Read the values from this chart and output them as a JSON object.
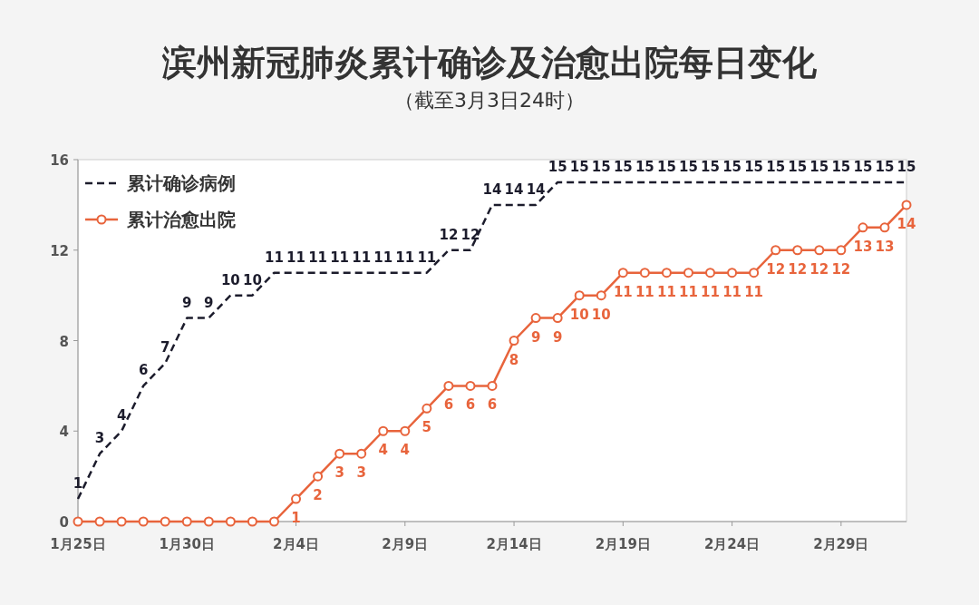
{
  "chart_data": {
    "type": "line",
    "title": "滨州新冠肺炎累计确诊及治愈出院每日变化",
    "subtitle": "（截至3月3日24时）",
    "x": [
      "--01-25",
      "--01-26",
      "--01-27",
      "--01-28",
      "--01-29",
      "--01-30",
      "--01-31",
      "--02-01",
      "--02-02",
      "--02-03",
      "--02-04",
      "--02-05",
      "--02-06",
      "--02-07",
      "--02-08",
      "--02-09",
      "--02-10",
      "--02-11",
      "--02-12",
      "--02-13",
      "--02-14",
      "--02-15",
      "--02-16",
      "--02-17",
      "--02-18",
      "--02-19",
      "--02-20",
      "--02-21",
      "--02-22",
      "--02-23",
      "--02-24",
      "--02-25",
      "--02-26",
      "--02-27",
      "--02-28",
      "--02-29",
      "--03-01",
      "--03-02",
      "--03-03"
    ],
    "series": [
      {
        "name": "累计确诊病例",
        "color": "#1c1c2c",
        "line_style": "dashed",
        "marker": "none",
        "values": [
          1,
          3,
          4,
          6,
          7,
          9,
          9,
          10,
          10,
          11,
          11,
          11,
          11,
          11,
          11,
          11,
          11,
          12,
          12,
          14,
          14,
          14,
          15,
          15,
          15,
          15,
          15,
          15,
          15,
          15,
          15,
          15,
          15,
          15,
          15,
          15,
          15,
          15,
          15
        ],
        "value_labels": [
          "1",
          "3",
          "4",
          "6",
          "7",
          "9",
          "9",
          "10",
          "10",
          "11",
          "11",
          "11",
          "11",
          "11",
          "11",
          "11",
          "11",
          "12",
          "12",
          "14",
          "14",
          "14",
          "15",
          "15",
          "15",
          "15",
          "15",
          "15",
          "15",
          "15",
          "15",
          "15",
          "15",
          "15",
          "15",
          "15",
          "15",
          "15",
          "15"
        ]
      },
      {
        "name": "累计治愈出院",
        "color": "#e8643c",
        "line_style": "solid",
        "marker": "circle",
        "values": [
          0,
          0,
          0,
          0,
          0,
          0,
          0,
          0,
          0,
          0,
          1,
          2,
          3,
          3,
          4,
          4,
          5,
          6,
          6,
          6,
          8,
          9,
          9,
          10,
          10,
          11,
          11,
          11,
          11,
          11,
          11,
          11,
          12,
          12,
          12,
          12,
          13,
          13,
          14
        ],
        "value_labels": [
          null,
          null,
          null,
          null,
          null,
          null,
          null,
          null,
          null,
          null,
          "1",
          "2",
          "3",
          "3",
          "4",
          "4",
          "5",
          "6",
          "6",
          "6",
          "8",
          "9",
          "9",
          "10",
          "10",
          "11",
          "11",
          "11",
          "11",
          "11",
          "11",
          "11",
          "12",
          "12",
          "12",
          "12",
          "13",
          "13",
          "14"
        ]
      }
    ],
    "xlim": [
      "--01-25",
      "--03-03"
    ],
    "xticks": [
      {
        "value": "--01-25",
        "label": "1月25日"
      },
      {
        "value": "--01-30",
        "label": "1月30日"
      },
      {
        "value": "--02-04",
        "label": "2月4日"
      },
      {
        "value": "--02-09",
        "label": "2月9日"
      },
      {
        "value": "--02-14",
        "label": "2月14日"
      },
      {
        "value": "--02-19",
        "label": "2月19日"
      },
      {
        "value": "--02-24",
        "label": "2月24日"
      },
      {
        "value": "--02-29",
        "label": "2月29日"
      }
    ],
    "ylim": [
      0,
      16
    ],
    "yticks": [
      0,
      4,
      8,
      12,
      16
    ],
    "grid": false,
    "legend": "top left"
  }
}
